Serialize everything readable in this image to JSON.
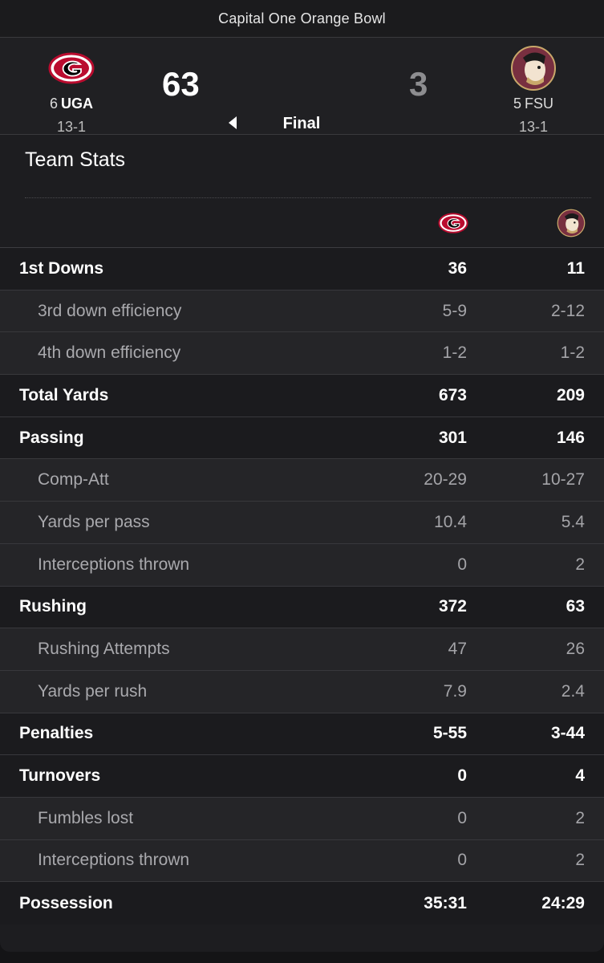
{
  "game": {
    "bowl_name": "Capital One Orange Bowl",
    "status": "Final",
    "home": {
      "rank": "6",
      "abbr": "UGA",
      "record": "13-1",
      "score": "63",
      "color": "#ba0c2f"
    },
    "away": {
      "rank": "5",
      "abbr": "FSU",
      "record": "13-1",
      "score": "3",
      "color": "#782f40"
    }
  },
  "stats": {
    "title": "Team Stats",
    "rows": [
      {
        "label": "1st Downs",
        "home": "36",
        "away": "11",
        "type": "main"
      },
      {
        "label": "3rd down efficiency",
        "home": "5-9",
        "away": "2-12",
        "type": "sub"
      },
      {
        "label": "4th down efficiency",
        "home": "1-2",
        "away": "1-2",
        "type": "sub"
      },
      {
        "label": "Total Yards",
        "home": "673",
        "away": "209",
        "type": "main"
      },
      {
        "label": "Passing",
        "home": "301",
        "away": "146",
        "type": "main"
      },
      {
        "label": "Comp-Att",
        "home": "20-29",
        "away": "10-27",
        "type": "sub"
      },
      {
        "label": "Yards per pass",
        "home": "10.4",
        "away": "5.4",
        "type": "sub"
      },
      {
        "label": "Interceptions thrown",
        "home": "0",
        "away": "2",
        "type": "sub"
      },
      {
        "label": "Rushing",
        "home": "372",
        "away": "63",
        "type": "main"
      },
      {
        "label": "Rushing Attempts",
        "home": "47",
        "away": "26",
        "type": "sub"
      },
      {
        "label": "Yards per rush",
        "home": "7.9",
        "away": "2.4",
        "type": "sub"
      },
      {
        "label": "Penalties",
        "home": "5-55",
        "away": "3-44",
        "type": "main"
      },
      {
        "label": "Turnovers",
        "home": "0",
        "away": "4",
        "type": "main"
      },
      {
        "label": "Fumbles lost",
        "home": "0",
        "away": "2",
        "type": "sub"
      },
      {
        "label": "Interceptions thrown",
        "home": "0",
        "away": "2",
        "type": "sub"
      },
      {
        "label": "Possession",
        "home": "35:31",
        "away": "24:29",
        "type": "main"
      }
    ]
  }
}
